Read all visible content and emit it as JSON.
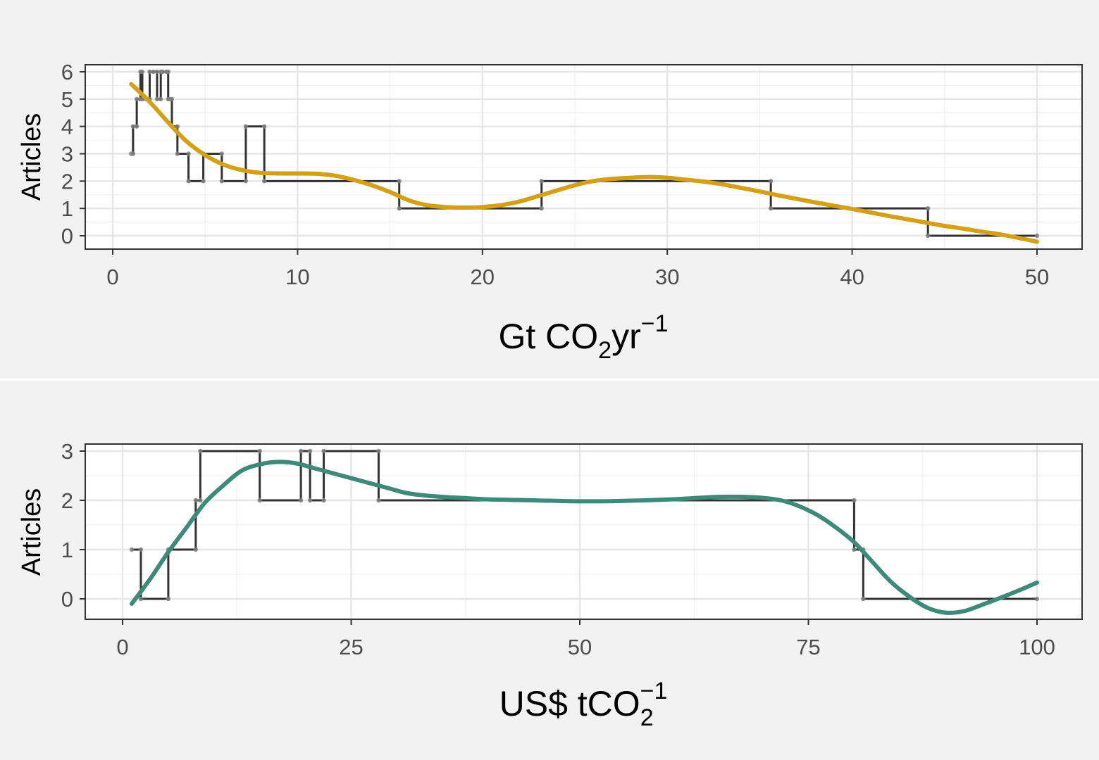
{
  "chart_data": [
    {
      "type": "line",
      "panel": "top",
      "xlabel": {
        "base": "Gt CO",
        "sub": "2",
        "mid": "yr",
        "sup": "−1"
      },
      "ylabel": "Articles",
      "xlim": [
        0,
        50
      ],
      "ylim": [
        0,
        6
      ],
      "xticks": [
        0,
        10,
        20,
        30,
        40,
        50
      ],
      "yticks": [
        0,
        1,
        2,
        3,
        4,
        5,
        6
      ],
      "grid": true,
      "legend": "none",
      "step_color": "#333333",
      "point_color": "#808080",
      "smooth_color": "#d4a017",
      "step_series": {
        "x": [
          1.0,
          1.1,
          1.3,
          1.5,
          1.6,
          1.8,
          2.0,
          2.2,
          2.4,
          2.6,
          2.7,
          2.9,
          3.0,
          3.1,
          3.2,
          3.5,
          4.1,
          4.9,
          5.9,
          7.2,
          8.2,
          15.5,
          23.2,
          35.6,
          44.1,
          50.0
        ],
        "y": [
          3,
          4,
          5,
          6,
          5,
          5,
          6,
          6,
          5,
          6,
          6,
          6,
          5,
          5,
          4,
          3,
          2,
          3,
          2,
          4,
          2,
          1,
          2,
          1,
          0,
          0
        ]
      },
      "smooth_series": {
        "x": [
          1,
          2,
          3,
          4,
          5,
          6,
          7,
          8,
          9,
          10,
          11,
          12,
          13,
          14,
          15,
          16,
          17,
          18,
          19,
          20,
          21,
          22,
          23,
          24,
          25,
          26,
          27,
          28,
          29,
          30,
          31,
          32,
          33,
          34,
          35,
          36,
          37,
          38,
          39,
          40,
          41,
          42,
          43,
          44,
          45,
          46,
          47,
          48,
          49,
          50
        ],
        "y": [
          5.55,
          4.9,
          4.15,
          3.45,
          2.95,
          2.6,
          2.4,
          2.3,
          2.28,
          2.28,
          2.27,
          2.2,
          2.05,
          1.85,
          1.6,
          1.3,
          1.12,
          1.05,
          1.03,
          1.05,
          1.12,
          1.25,
          1.45,
          1.65,
          1.85,
          2.0,
          2.08,
          2.12,
          2.15,
          2.12,
          2.05,
          1.98,
          1.88,
          1.75,
          1.62,
          1.48,
          1.35,
          1.22,
          1.1,
          0.98,
          0.85,
          0.72,
          0.6,
          0.48,
          0.36,
          0.26,
          0.15,
          0.05,
          -0.08,
          -0.22
        ]
      }
    },
    {
      "type": "line",
      "panel": "bottom",
      "xlabel": {
        "base": "US$ tCO",
        "sub": "2",
        "sup": "−1"
      },
      "ylabel": "Articles",
      "xlim": [
        0,
        100
      ],
      "ylim": [
        0,
        3
      ],
      "xticks": [
        0,
        25,
        50,
        75,
        100
      ],
      "yticks": [
        0,
        1,
        2,
        3
      ],
      "grid": true,
      "legend": "none",
      "step_color": "#333333",
      "point_color": "#808080",
      "smooth_color": "#3d8a78",
      "step_series": {
        "x": [
          1.0,
          2.0,
          5.0,
          8.0,
          8.5,
          15.0,
          19.5,
          20.5,
          22.0,
          28.0,
          80.0,
          81.0,
          100.0
        ],
        "y": [
          1,
          0,
          1,
          2,
          3,
          2,
          3,
          2,
          3,
          2,
          1,
          0,
          0
        ]
      },
      "smooth_series": {
        "x": [
          1,
          3,
          5,
          7,
          9,
          11,
          13,
          15,
          17,
          19,
          21,
          23,
          25,
          27,
          29,
          31,
          33,
          35,
          37,
          40,
          45,
          50,
          55,
          60,
          65,
          68,
          70,
          72,
          74,
          76,
          78,
          80,
          82,
          84,
          86,
          88,
          90,
          92,
          94,
          96,
          98,
          100
        ],
        "y": [
          -0.1,
          0.4,
          0.95,
          1.45,
          1.95,
          2.3,
          2.6,
          2.73,
          2.78,
          2.75,
          2.65,
          2.55,
          2.45,
          2.35,
          2.25,
          2.15,
          2.1,
          2.07,
          2.05,
          2.02,
          2.0,
          1.98,
          1.99,
          2.02,
          2.07,
          2.07,
          2.05,
          2.0,
          1.88,
          1.7,
          1.45,
          1.15,
          0.75,
          0.35,
          0.05,
          -0.18,
          -0.28,
          -0.25,
          -0.12,
          0.02,
          0.17,
          0.33
        ]
      }
    }
  ]
}
